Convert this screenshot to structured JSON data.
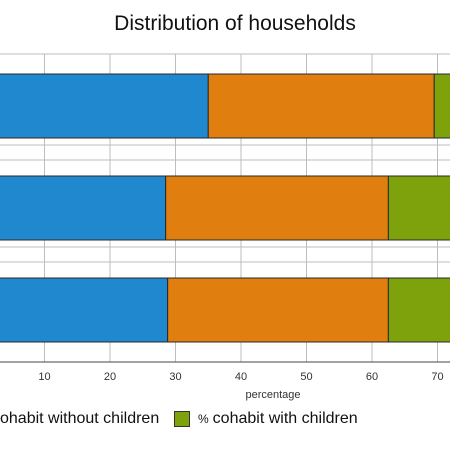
{
  "chart_data": {
    "type": "bar",
    "orientation": "horizontal",
    "stacked": true,
    "title": "Distribution of households",
    "xlabel": "percentage",
    "x_ticks": [
      10,
      20,
      30,
      40,
      50,
      60,
      70
    ],
    "xlim": [
      0,
      100
    ],
    "grid": true,
    "categories": [
      "",
      "",
      ""
    ],
    "series": [
      {
        "name": "",
        "color": "#1f88cf",
        "values": [
          35,
          28.5,
          28.8
        ]
      },
      {
        "name": "cohabit without children",
        "legend_prefix": "",
        "color": "#e07f10",
        "values": [
          34.5,
          34,
          33.7
        ]
      },
      {
        "name": "cohabit with children",
        "legend_prefix": "%",
        "color": "#7da20c",
        "values": [
          30.5,
          37.5,
          37.5
        ]
      }
    ],
    "legend_placement": "bottom"
  }
}
